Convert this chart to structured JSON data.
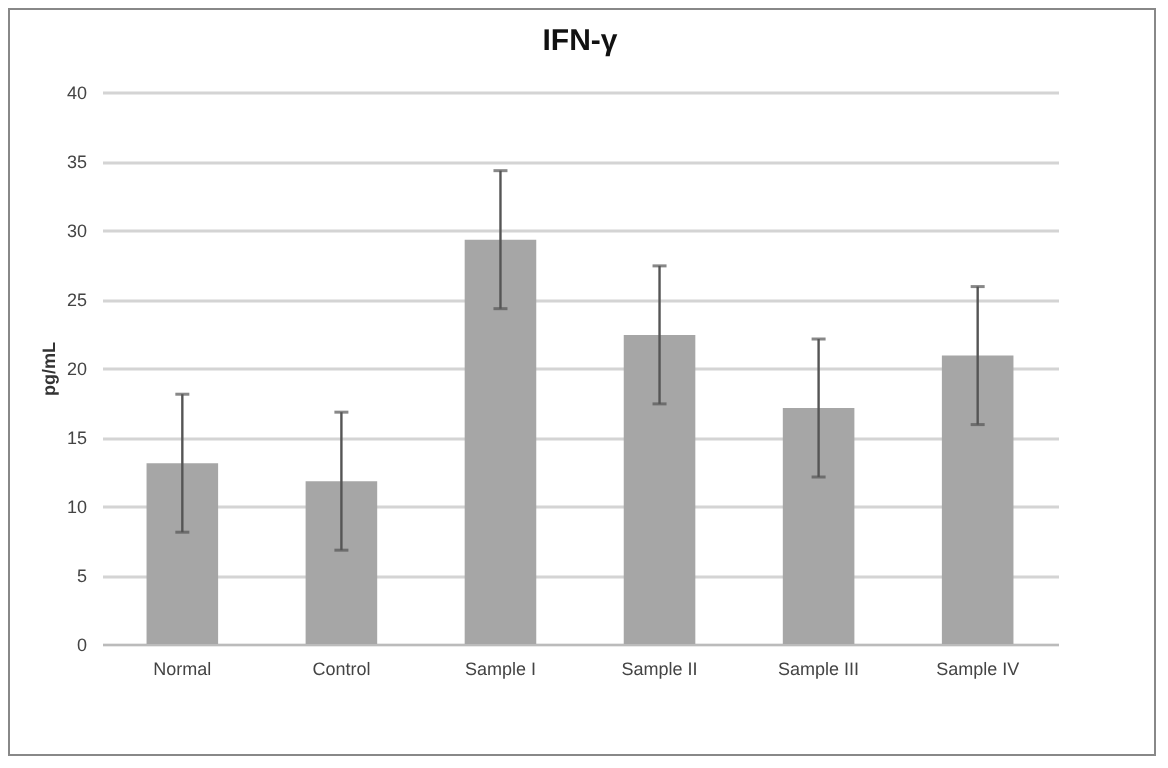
{
  "chart_data": {
    "type": "bar",
    "title": "IFN-γ",
    "ylabel": "pg/mL",
    "categories": [
      "Normal",
      "Control",
      "Sample I",
      "Sample II",
      "Sample III",
      "Sample IV"
    ],
    "values": [
      13.1,
      11.8,
      29.3,
      22.4,
      17.1,
      20.9
    ],
    "errors": [
      5,
      5,
      5,
      5,
      5,
      5
    ],
    "color": "#a6a6a6",
    "ylim": [
      0,
      40
    ],
    "yticks": [
      0,
      5,
      10,
      15,
      20,
      25,
      30,
      35,
      40
    ],
    "grid": "y"
  }
}
